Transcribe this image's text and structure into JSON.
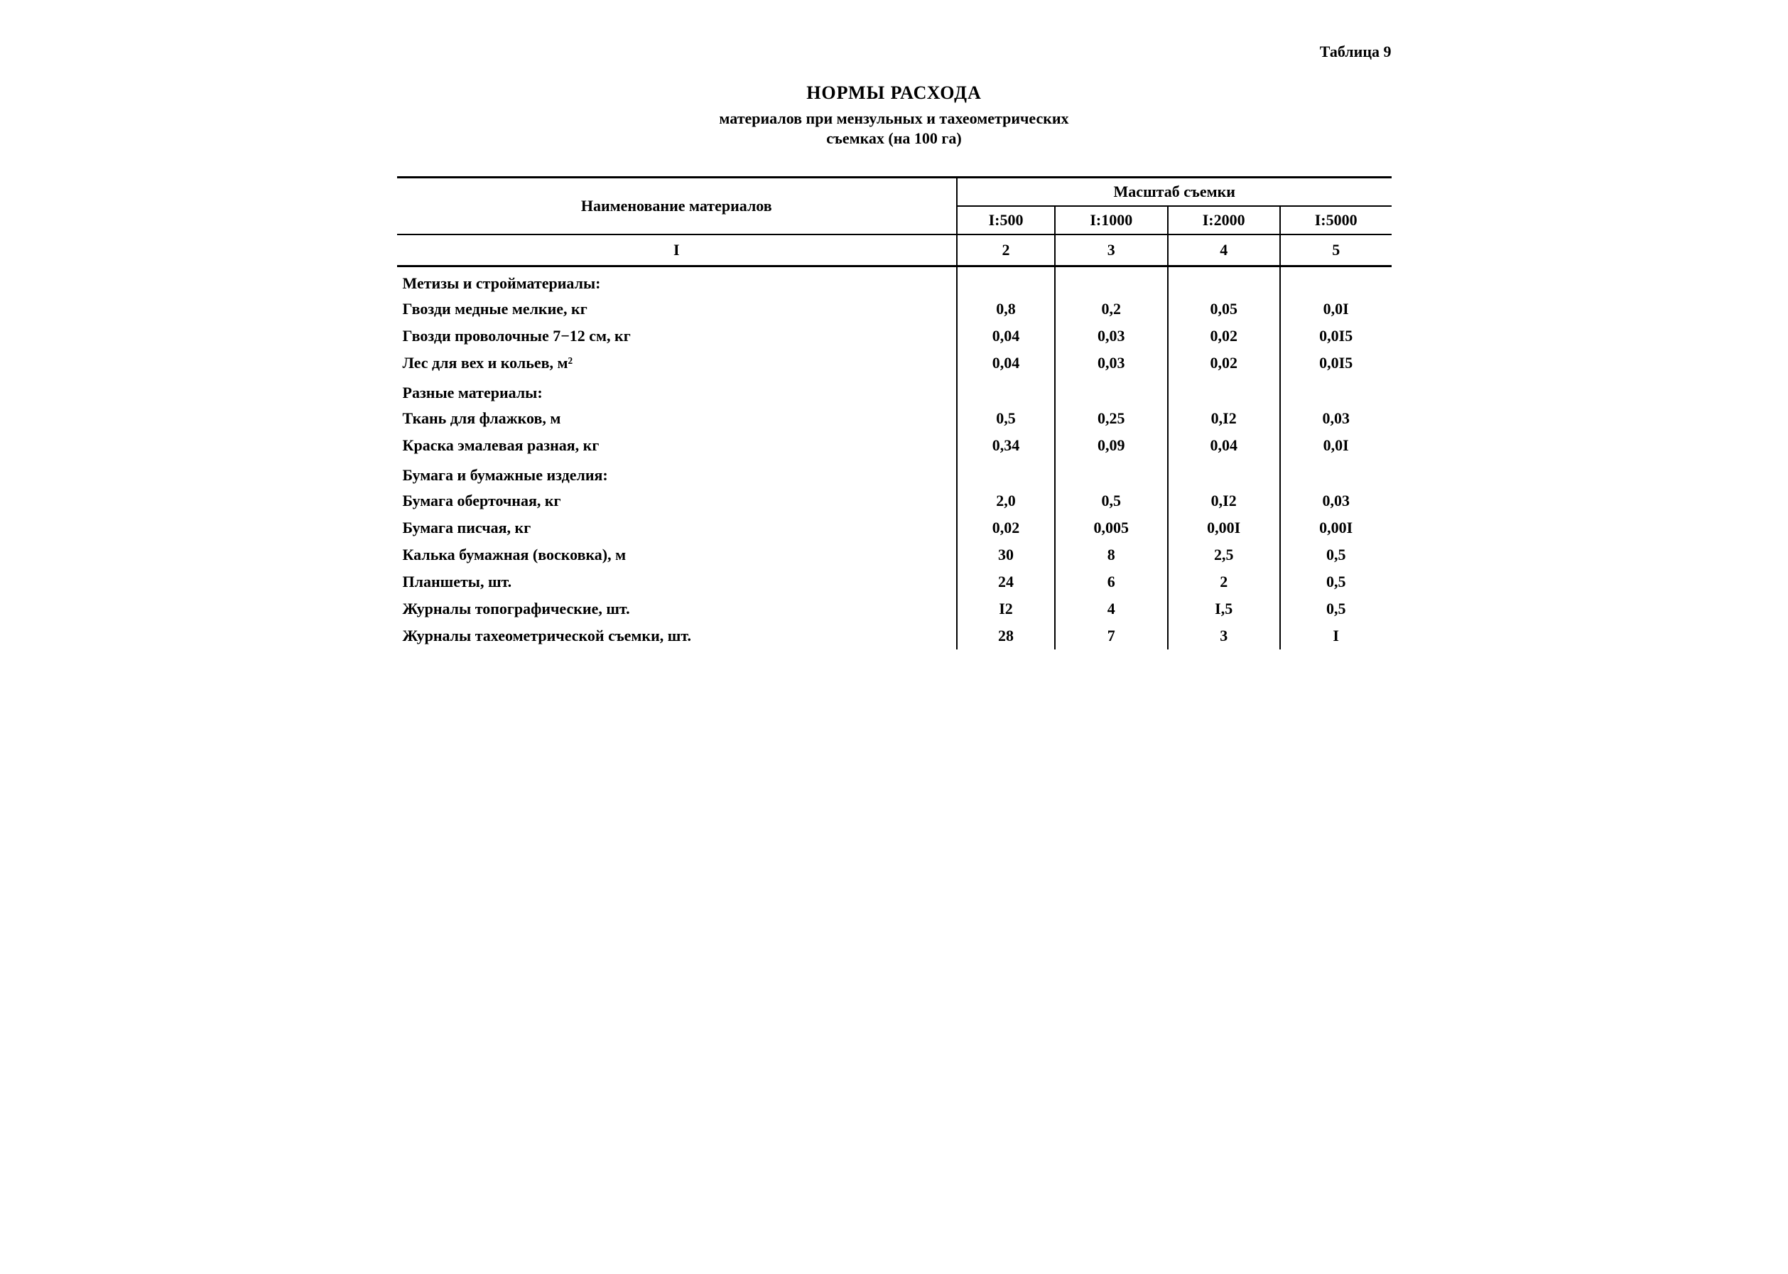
{
  "tableLabel": "Таблица 9",
  "titleMain": "НОРМЫ РАСХОДА",
  "titleSub1": "материалов при мензульных и тахеометрических",
  "titleSub2": "съемках (на 100 га)",
  "headers": {
    "name": "Наименование материалов",
    "scaleGroup": "Масштаб съемки",
    "scales": [
      "I:500",
      "I:1000",
      "I:2000",
      "I:5000"
    ],
    "colNums": [
      "I",
      "2",
      "3",
      "4",
      "5"
    ]
  },
  "groups": [
    {
      "title": "Метизы и стройматериалы:",
      "rows": [
        {
          "name": "Гвозди медные мелкие, кг",
          "v": [
            "0,8",
            "0,2",
            "0,05",
            "0,0I"
          ]
        },
        {
          "name": "Гвозди проволочные 7−12 см, кг",
          "v": [
            "0,04",
            "0,03",
            "0,02",
            "0,0I5"
          ]
        },
        {
          "name": "Лес для вех и кольев, м²",
          "v": [
            "0,04",
            "0,03",
            "0,02",
            "0,0I5"
          ]
        }
      ]
    },
    {
      "title": "Разные материалы:",
      "rows": [
        {
          "name": "Ткань для флажков, м",
          "v": [
            "0,5",
            "0,25",
            "0,I2",
            "0,03"
          ]
        },
        {
          "name": "Краска эмалевая разная, кг",
          "v": [
            "0,34",
            "0,09",
            "0,04",
            "0,0I"
          ]
        }
      ]
    },
    {
      "title": "Бумага и бумажные изделия:",
      "rows": [
        {
          "name": "Бумага оберточная, кг",
          "v": [
            "2,0",
            "0,5",
            "0,I2",
            "0,03"
          ]
        },
        {
          "name": "Бумага писчая, кг",
          "v": [
            "0,02",
            "0,005",
            "0,00I",
            "0,00I"
          ]
        },
        {
          "name": "Калька бумажная (восковка), м",
          "v": [
            "30",
            "8",
            "2,5",
            "0,5"
          ]
        },
        {
          "name": "Планшеты, шт.",
          "v": [
            "24",
            "6",
            "2",
            "0,5"
          ]
        },
        {
          "name": "Журналы топографические, шт.",
          "v": [
            "I2",
            "4",
            "I,5",
            "0,5"
          ]
        },
        {
          "name": "Журналы тахеометрической съемки, шт.",
          "v": [
            "28",
            "7",
            "3",
            "I"
          ]
        }
      ]
    }
  ],
  "style": {
    "fontFamily": "Times New Roman",
    "fontSizeBody": 22,
    "fontSizeTitle": 26,
    "textColor": "#000000",
    "backgroundColor": "#ffffff",
    "borderColor": "#000000",
    "borderWidthThick": 3,
    "borderWidthThin": 2
  }
}
